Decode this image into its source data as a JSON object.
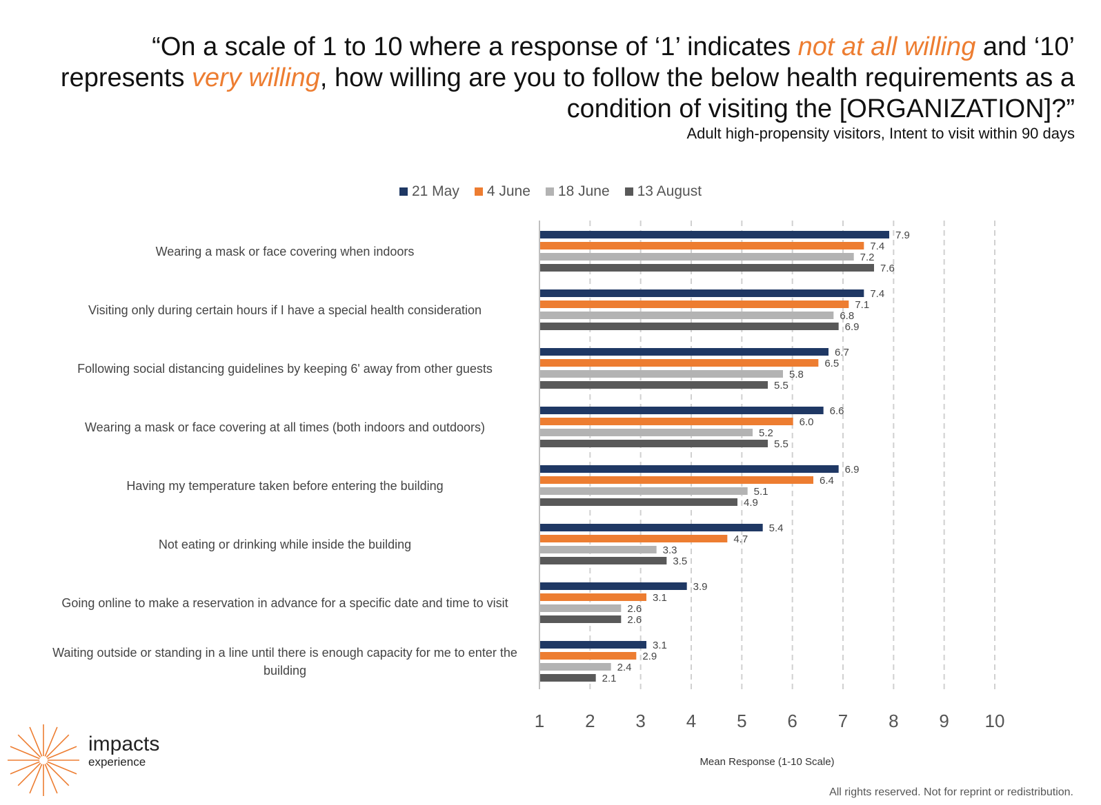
{
  "header": {
    "title_parts": [
      {
        "text": "“On a scale of 1 to 10 where a response of ‘1’ indicates ",
        "highlight": false
      },
      {
        "text": "not at all willing",
        "highlight": true
      },
      {
        "text": " and ‘10’ represents ",
        "highlight": false
      },
      {
        "text": "very willing",
        "highlight": true
      },
      {
        "text": ", how willing are you to follow the below health requirements as a condition of visiting the [ORGANIZATION]?”",
        "highlight": false
      }
    ],
    "subtitle": "Adult high-propensity visitors, Intent to visit within 90 days"
  },
  "chart_data": {
    "type": "bar",
    "orientation": "horizontal",
    "categories": [
      "Wearing a mask or face covering when indoors",
      "Visiting only during certain hours if I have a special health consideration",
      "Following social distancing guidelines by keeping 6' away from other guests",
      "Wearing a mask or face covering at all times (both indoors and outdoors)",
      "Having my temperature taken before entering the building",
      "Not eating or drinking while inside the building",
      "Going online to make a reservation in advance for a specific date and time to visit",
      "Waiting outside or standing in a line until there is enough capacity for me to enter the building"
    ],
    "series": [
      {
        "name": "21 May",
        "color": "#1F3864",
        "values": [
          7.9,
          7.4,
          6.7,
          6.6,
          6.9,
          5.4,
          3.9,
          3.1
        ],
        "labels": [
          "7.9",
          "7.4",
          "6.7",
          "6.6",
          "6.9",
          "5.4",
          "3.9",
          "3.1"
        ]
      },
      {
        "name": "4 June",
        "color": "#ED7D31",
        "values": [
          7.4,
          7.1,
          6.5,
          6.0,
          6.4,
          4.7,
          3.1,
          2.9
        ],
        "labels": [
          "7.4",
          "7.1",
          "6.5",
          "6.0",
          "6.4",
          "4.7",
          "3.1",
          "2.9"
        ]
      },
      {
        "name": "18 June",
        "color": "#B3B3B3",
        "values": [
          7.2,
          6.8,
          5.8,
          5.2,
          5.1,
          3.3,
          2.6,
          2.4
        ],
        "labels": [
          "7.2",
          "6.8",
          "5.8",
          "5.2",
          "5.1",
          "3.3",
          "2.6",
          "2.4"
        ]
      },
      {
        "name": "13 August",
        "color": "#595959",
        "values": [
          7.6,
          6.9,
          5.5,
          5.5,
          4.9,
          3.5,
          2.6,
          2.1
        ],
        "labels": [
          "7.6",
          "6.9",
          "5.5",
          "5.5",
          "4.9",
          "3.5",
          "2.6",
          "2.1"
        ]
      }
    ],
    "xlim": [
      1,
      10
    ],
    "xticks": [
      "1",
      "2",
      "3",
      "4",
      "5",
      "6",
      "7",
      "8",
      "9",
      "10"
    ],
    "xlabel": "Mean Response (1-10 Scale)",
    "grid": true,
    "legend_position": "top"
  },
  "branding": {
    "name": "impacts",
    "sub": "experience",
    "accent": "#ED7D31"
  },
  "footer": "All rights reserved. Not for reprint or redistribution."
}
